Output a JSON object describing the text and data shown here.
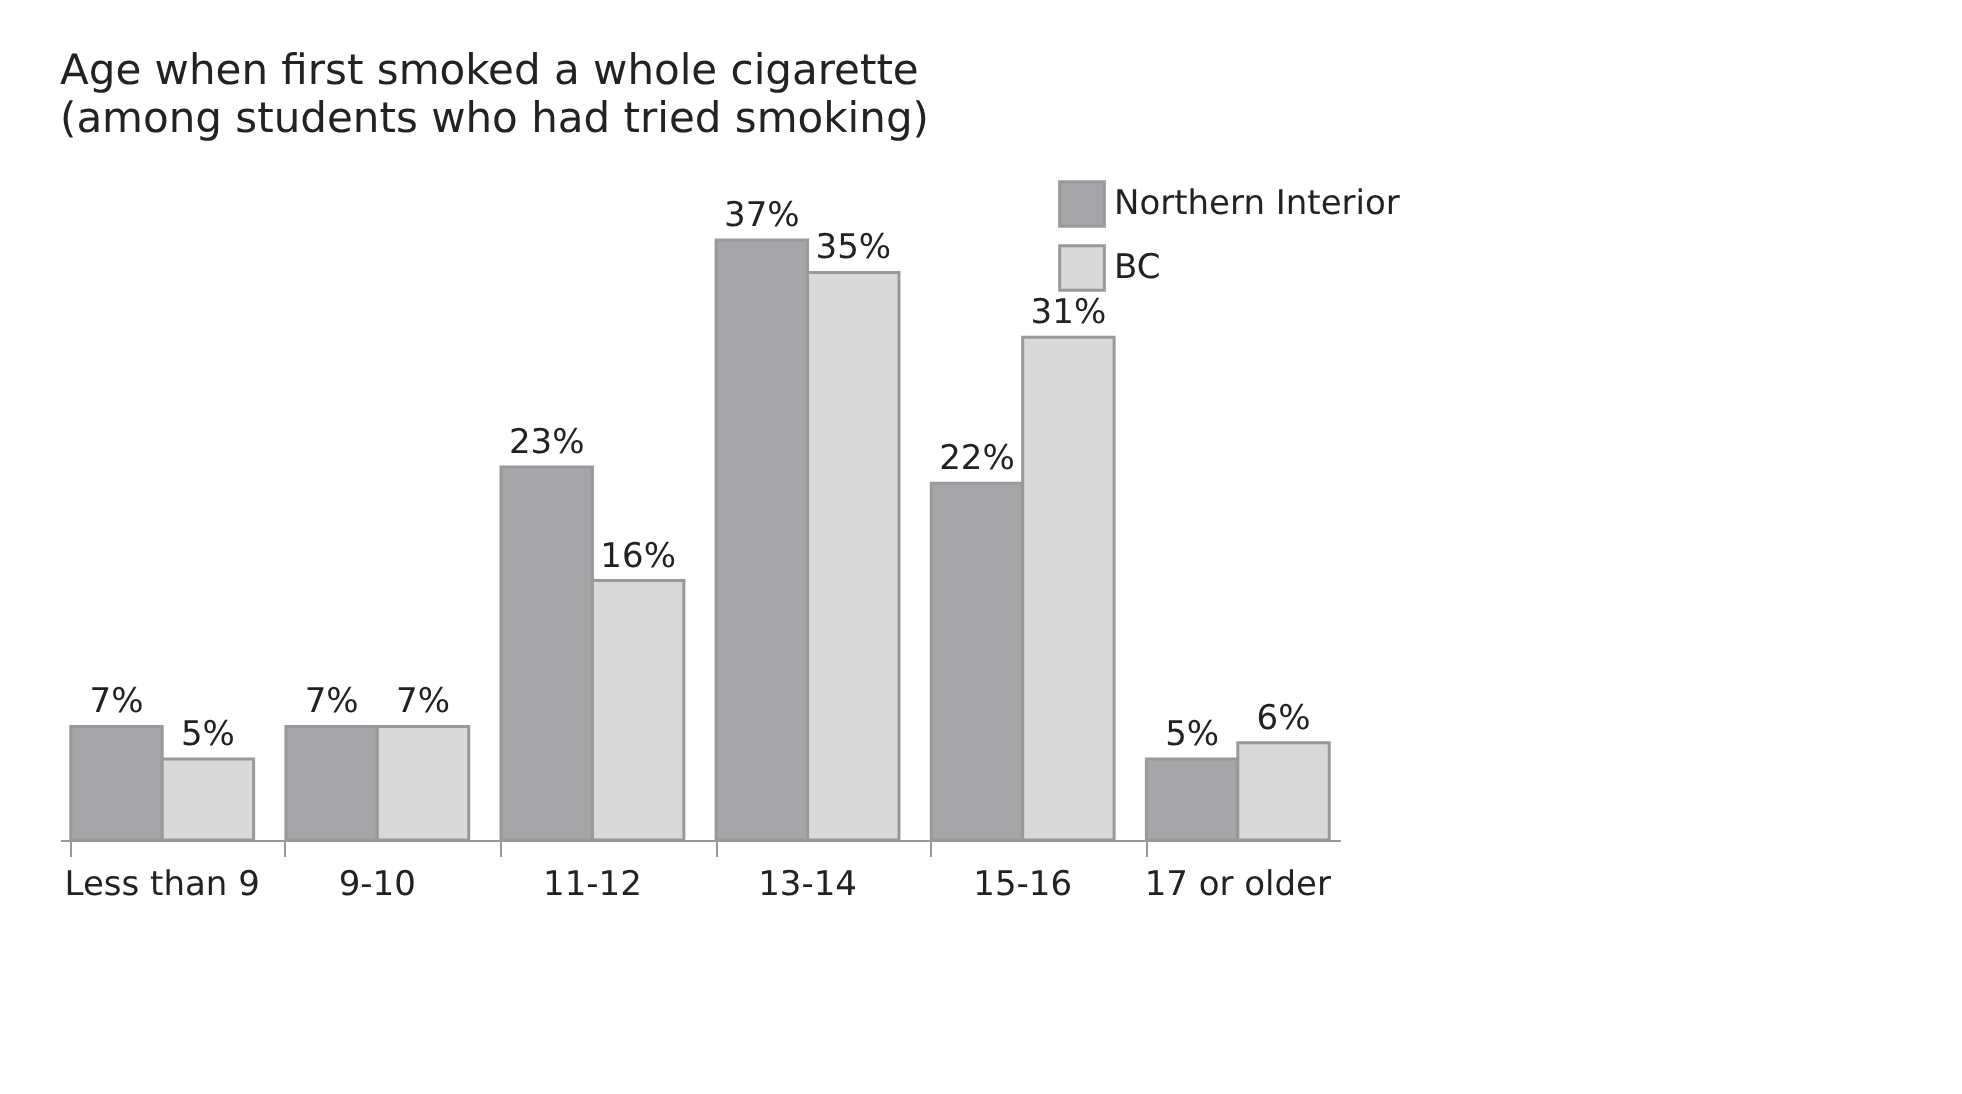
{
  "chart_data": {
    "type": "bar",
    "title": "Age when first smoked a whole cigarette",
    "subtitle": "(among students who had tried smoking)",
    "categories": [
      "Less than 9",
      "9-10",
      "11-12",
      "13-14",
      "15-16",
      "17 or older"
    ],
    "legend": "top right",
    "series": [
      {
        "name": "Northern Interior",
        "color": "#a6a6a8",
        "values": [
          7,
          7,
          23,
          37,
          22,
          5
        ],
        "value_labels": [
          "7%",
          "7%",
          "23%",
          "37%",
          "22%",
          "5%"
        ]
      },
      {
        "name": "BC",
        "color": "#d9d9da",
        "values": [
          5,
          7,
          16,
          35,
          31,
          6
        ],
        "value_labels": [
          "5%",
          "7%",
          "16%",
          "35%",
          "31%",
          "6%"
        ]
      }
    ]
  }
}
